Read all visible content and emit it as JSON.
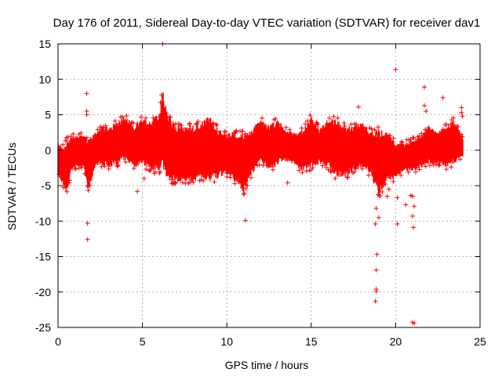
{
  "chart_data": {
    "type": "scatter",
    "title": "Day 176 of 2011, Sidereal Day-to-day VTEC variation (SDTVAR) for receiver dav1",
    "xlabel": "GPS time / hours",
    "ylabel": "SDTVAR / TECUs",
    "xlim": [
      0,
      25
    ],
    "ylim": [
      -25,
      15
    ],
    "xticks": [
      0,
      5,
      10,
      15,
      20,
      25
    ],
    "yticks": [
      -25,
      -20,
      -15,
      -10,
      -5,
      0,
      5,
      10,
      15
    ],
    "grid": true,
    "marker": "+",
    "color": "#ff0000",
    "data_range_x": [
      0,
      24
    ],
    "envelope": {
      "comment": "approximate upper/lower extent of the dense red band by hour",
      "x": [
        0.0,
        0.3,
        0.5,
        0.8,
        1.0,
        1.5,
        1.8,
        2.2,
        2.5,
        3.0,
        3.5,
        4.0,
        4.5,
        5.0,
        5.5,
        6.0,
        6.2,
        6.5,
        7.0,
        7.5,
        8.0,
        8.5,
        9.0,
        9.5,
        10.0,
        10.5,
        11.0,
        11.5,
        12.0,
        12.5,
        13.0,
        13.5,
        14.0,
        14.5,
        15.0,
        15.5,
        16.0,
        16.5,
        17.0,
        17.5,
        18.0,
        18.5,
        19.0,
        19.5,
        20.0,
        20.5,
        21.0,
        21.5,
        22.0,
        22.5,
        23.0,
        23.5,
        24.0
      ],
      "upper": [
        1.0,
        0.5,
        1.5,
        2.0,
        2.0,
        2.2,
        1.5,
        2.5,
        3.0,
        3.5,
        4.0,
        5.0,
        3.5,
        4.8,
        4.0,
        5.5,
        8.5,
        5.0,
        3.5,
        3.5,
        3.5,
        4.0,
        5.0,
        3.0,
        2.5,
        2.5,
        2.5,
        3.0,
        4.5,
        3.5,
        4.5,
        3.0,
        2.5,
        3.0,
        5.0,
        3.0,
        4.5,
        4.5,
        3.5,
        3.5,
        4.0,
        3.0,
        3.0,
        2.5,
        1.0,
        1.0,
        1.5,
        2.0,
        3.5,
        2.5,
        3.5,
        4.5,
        1.5
      ],
      "lower": [
        -3.5,
        -5.0,
        -6.0,
        -3.0,
        -2.5,
        -2.5,
        -5.5,
        -2.5,
        -2.0,
        -2.5,
        -2.0,
        -1.5,
        -2.5,
        -2.0,
        -3.0,
        -3.0,
        -2.5,
        -4.5,
        -4.5,
        -4.5,
        -4.5,
        -4.0,
        -4.5,
        -4.0,
        -3.5,
        -4.5,
        -6.0,
        -3.5,
        -1.5,
        -3.0,
        -2.0,
        -1.5,
        -2.0,
        -3.0,
        -2.5,
        -2.0,
        -2.5,
        -4.0,
        -4.0,
        -3.0,
        -2.5,
        -3.5,
        -6.5,
        -4.5,
        -4.0,
        -3.0,
        -3.0,
        -2.5,
        -2.0,
        -2.0,
        -2.5,
        -2.0,
        -1.0
      ]
    },
    "outliers": [
      {
        "x": 1.7,
        "y": 8.0
      },
      {
        "x": 1.7,
        "y": 5.5
      },
      {
        "x": 1.7,
        "y": 5.0
      },
      {
        "x": 1.75,
        "y": -10.3
      },
      {
        "x": 1.75,
        "y": -12.6
      },
      {
        "x": 4.7,
        "y": -5.8
      },
      {
        "x": 5.1,
        "y": -4.0
      },
      {
        "x": 6.2,
        "y": 15.0
      },
      {
        "x": 7.6,
        "y": -4.0
      },
      {
        "x": 7.9,
        "y": -4.2
      },
      {
        "x": 11.1,
        "y": -9.9
      },
      {
        "x": 13.6,
        "y": -4.6
      },
      {
        "x": 17.8,
        "y": 6.1
      },
      {
        "x": 18.8,
        "y": -10.4
      },
      {
        "x": 18.85,
        "y": -8.2
      },
      {
        "x": 18.9,
        "y": -14.7
      },
      {
        "x": 18.85,
        "y": -16.9
      },
      {
        "x": 18.85,
        "y": -19.6
      },
      {
        "x": 18.85,
        "y": -19.9
      },
      {
        "x": 18.8,
        "y": -21.3
      },
      {
        "x": 19.0,
        "y": -9.5
      },
      {
        "x": 19.5,
        "y": -6.5
      },
      {
        "x": 19.6,
        "y": -5.5
      },
      {
        "x": 20.0,
        "y": 11.4
      },
      {
        "x": 20.1,
        "y": -10.4
      },
      {
        "x": 20.1,
        "y": -6.7
      },
      {
        "x": 20.6,
        "y": -7.7
      },
      {
        "x": 20.9,
        "y": -6.4
      },
      {
        "x": 21.0,
        "y": -6.5
      },
      {
        "x": 21.0,
        "y": -9.3
      },
      {
        "x": 21.05,
        "y": -10.9
      },
      {
        "x": 21.0,
        "y": -24.3
      },
      {
        "x": 21.1,
        "y": -24.4
      },
      {
        "x": 21.1,
        "y": -7.9
      },
      {
        "x": 21.7,
        "y": 8.9
      },
      {
        "x": 21.7,
        "y": 6.3
      },
      {
        "x": 21.8,
        "y": 5.5
      },
      {
        "x": 22.8,
        "y": 7.4
      },
      {
        "x": 23.0,
        "y": -2.7
      },
      {
        "x": 23.9,
        "y": 6.0
      },
      {
        "x": 23.9,
        "y": 5.3
      },
      {
        "x": 23.95,
        "y": 4.8
      }
    ]
  }
}
